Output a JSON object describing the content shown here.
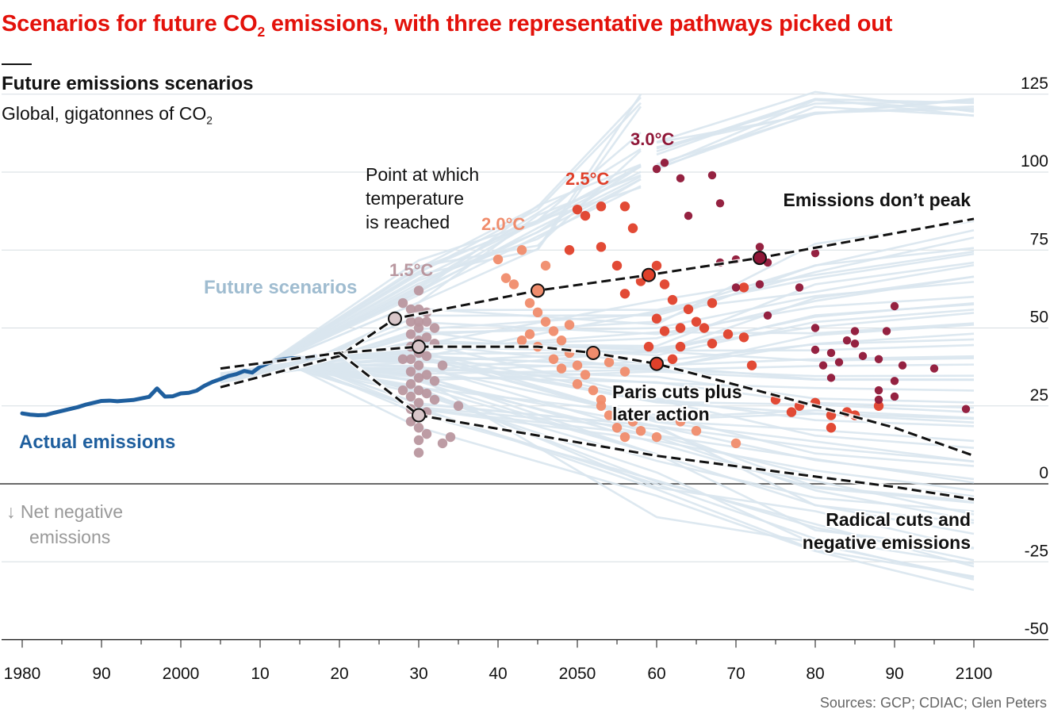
{
  "headline": {
    "text": "Scenarios for future CO",
    "sub": "2",
    "rest": " emissions, with three representative pathways picked out"
  },
  "panel": {
    "title": "Future emissions scenarios",
    "subtitle": "Global, gigatonnes of CO",
    "subtitle_sub": "2"
  },
  "source": "Sources: GCP; CDIAC; Glen Peters",
  "colors": {
    "actual": "#1f5f9e",
    "scenario": "#d9e5ee",
    "deg15": "#b9979f",
    "deg20": "#f08c6c",
    "deg25": "#e0402a",
    "deg30": "#8f1637",
    "pathway": "#111111",
    "headline": "#e3120b"
  },
  "chart_data": {
    "type": "line",
    "xlim": [
      1978,
      2100
    ],
    "ylim": [
      -50,
      125
    ],
    "x_ticks": [
      {
        "value": 1980,
        "label": "1980"
      },
      {
        "value": 1990,
        "label": "90"
      },
      {
        "value": 2000,
        "label": "2000"
      },
      {
        "value": 2010,
        "label": "10"
      },
      {
        "value": 2020,
        "label": "20"
      },
      {
        "value": 2030,
        "label": "30"
      },
      {
        "value": 2040,
        "label": "40"
      },
      {
        "value": 2050,
        "label": "2050"
      },
      {
        "value": 2060,
        "label": "60"
      },
      {
        "value": 2070,
        "label": "70"
      },
      {
        "value": 2080,
        "label": "80"
      },
      {
        "value": 2090,
        "label": "90"
      },
      {
        "value": 2100,
        "label": "2100"
      }
    ],
    "y_ticks": [
      125,
      100,
      75,
      50,
      25,
      0,
      -25,
      -50
    ],
    "grid": true,
    "annotations": {
      "actual": "Actual emissions",
      "future": "Future scenarios",
      "net_negative": [
        "↓ Net negative",
        "emissions"
      ],
      "point_note": [
        "Point at which",
        "temperature",
        "is reached"
      ],
      "no_peak": "Emissions don’t peak",
      "paris": [
        "Paris cuts plus",
        "later action"
      ],
      "radical": [
        "Radical cuts and",
        "negative emissions"
      ],
      "deg15": "1.5°C",
      "deg20": "2.0°C",
      "deg25": "2.5°C",
      "deg30": "3.0°C"
    },
    "actual_emissions": {
      "x": [
        1980,
        1981,
        1982,
        1983,
        1984,
        1985,
        1986,
        1987,
        1988,
        1989,
        1990,
        1991,
        1992,
        1993,
        1994,
        1995,
        1996,
        1997,
        1998,
        1999,
        2000,
        2001,
        2002,
        2003,
        2004,
        2005,
        2006,
        2007,
        2008,
        2009,
        2010,
        2011,
        2012,
        2013,
        2014,
        2015,
        2016,
        2017
      ],
      "y": [
        22.6,
        22.2,
        22.0,
        22.1,
        22.8,
        23.4,
        24.0,
        24.6,
        25.4,
        26.0,
        26.6,
        26.7,
        26.5,
        26.7,
        26.9,
        27.4,
        27.9,
        30.6,
        28.0,
        28.1,
        29.0,
        29.2,
        29.9,
        31.5,
        32.7,
        33.6,
        34.6,
        35.2,
        36.2,
        35.7,
        37.6,
        38.7,
        39.5,
        40.0,
        40.3,
        40.4,
        40.5,
        41.0
      ]
    },
    "pathways": [
      {
        "name": "Emissions don’t peak",
        "x": [
          2005,
          2020,
          2027,
          2045,
          2059,
          2073,
          2100
        ],
        "y": [
          31,
          41,
          53,
          62,
          67,
          72.5,
          85
        ]
      },
      {
        "name": "Paris cuts plus later action",
        "x": [
          2005,
          2020,
          2030,
          2045,
          2052,
          2060,
          2080,
          2090,
          2100
        ],
        "y": [
          37,
          42,
          44,
          44,
          42,
          38.5,
          25,
          18,
          9
        ]
      },
      {
        "name": "Radical cuts and negative emissions",
        "x": [
          2020,
          2030,
          2060,
          2090,
          2100
        ],
        "y": [
          42,
          22,
          9,
          -1,
          -5
        ]
      }
    ],
    "pathway_markers": [
      {
        "x": 2027,
        "y": 53,
        "level": "1.5"
      },
      {
        "x": 2030,
        "y": 44,
        "level": "1.5"
      },
      {
        "x": 2030,
        "y": 22,
        "level": "1.5"
      },
      {
        "x": 2045,
        "y": 62,
        "level": "2.0"
      },
      {
        "x": 2052,
        "y": 42,
        "level": "2.0"
      },
      {
        "x": 2059,
        "y": 67,
        "level": "2.5"
      },
      {
        "x": 2060,
        "y": 38.5,
        "level": "2.5"
      },
      {
        "x": 2073,
        "y": 72.5,
        "level": "3.0"
      }
    ],
    "temperature_points": [
      {
        "level": "1.5",
        "points": [
          [
            2028,
            58
          ],
          [
            2029,
            52
          ],
          [
            2029,
            48
          ],
          [
            2029,
            44
          ],
          [
            2029,
            40
          ],
          [
            2029,
            36
          ],
          [
            2029,
            32
          ],
          [
            2029,
            28
          ],
          [
            2029,
            24
          ],
          [
            2029,
            20
          ],
          [
            2030,
            62
          ],
          [
            2030,
            56
          ],
          [
            2030,
            50
          ],
          [
            2030,
            46
          ],
          [
            2030,
            42
          ],
          [
            2030,
            38
          ],
          [
            2030,
            34
          ],
          [
            2030,
            30
          ],
          [
            2030,
            26
          ],
          [
            2030,
            18
          ],
          [
            2030,
            14
          ],
          [
            2030,
            10
          ],
          [
            2031,
            55
          ],
          [
            2031,
            47
          ],
          [
            2031,
            41
          ],
          [
            2031,
            35
          ],
          [
            2031,
            29
          ],
          [
            2031,
            23
          ],
          [
            2031,
            16
          ],
          [
            2032,
            45
          ],
          [
            2032,
            33
          ],
          [
            2032,
            27
          ],
          [
            2033,
            38
          ],
          [
            2033,
            13
          ],
          [
            2034,
            15
          ],
          [
            2035,
            25
          ],
          [
            2028,
            40
          ],
          [
            2028,
            30
          ],
          [
            2029,
            56
          ],
          [
            2031,
            52
          ],
          [
            2032,
            50
          ],
          [
            2030,
            52
          ]
        ]
      },
      {
        "level": "2.0",
        "points": [
          [
            2040,
            72
          ],
          [
            2041,
            66
          ],
          [
            2042,
            64
          ],
          [
            2044,
            58
          ],
          [
            2045,
            55
          ],
          [
            2046,
            52
          ],
          [
            2047,
            49
          ],
          [
            2048,
            46
          ],
          [
            2049,
            42
          ],
          [
            2050,
            38
          ],
          [
            2051,
            35
          ],
          [
            2052,
            30
          ],
          [
            2053,
            27
          ],
          [
            2054,
            22
          ],
          [
            2055,
            18
          ],
          [
            2056,
            15
          ],
          [
            2043,
            75
          ],
          [
            2046,
            70
          ],
          [
            2044,
            48
          ],
          [
            2045,
            44
          ],
          [
            2047,
            40
          ],
          [
            2048,
            37
          ],
          [
            2050,
            32
          ],
          [
            2053,
            25
          ],
          [
            2057,
            20
          ],
          [
            2058,
            17
          ],
          [
            2060,
            15
          ],
          [
            2063,
            20
          ],
          [
            2065,
            17
          ],
          [
            2070,
            13
          ],
          [
            2043,
            46
          ],
          [
            2049,
            51
          ],
          [
            2054,
            39
          ],
          [
            2056,
            36
          ]
        ]
      },
      {
        "level": "2.5",
        "points": [
          [
            2050,
            88
          ],
          [
            2051,
            86
          ],
          [
            2053,
            89
          ],
          [
            2056,
            89
          ],
          [
            2057,
            82
          ],
          [
            2053,
            76
          ],
          [
            2049,
            75
          ],
          [
            2055,
            70
          ],
          [
            2060,
            70
          ],
          [
            2058,
            65
          ],
          [
            2061,
            64
          ],
          [
            2056,
            61
          ],
          [
            2062,
            59
          ],
          [
            2064,
            56
          ],
          [
            2063,
            50
          ],
          [
            2066,
            50
          ],
          [
            2067,
            45
          ],
          [
            2069,
            48
          ],
          [
            2071,
            47
          ],
          [
            2072,
            38
          ],
          [
            2075,
            27
          ],
          [
            2077,
            23
          ],
          [
            2078,
            25
          ],
          [
            2080,
            26
          ],
          [
            2082,
            22
          ],
          [
            2084,
            23
          ],
          [
            2085,
            22
          ],
          [
            2088,
            25
          ],
          [
            2059,
            44
          ],
          [
            2061,
            49
          ],
          [
            2063,
            44
          ],
          [
            2065,
            52
          ],
          [
            2067,
            58
          ],
          [
            2071,
            63
          ],
          [
            2060,
            53
          ],
          [
            2062,
            40
          ],
          [
            2082,
            18
          ]
        ]
      },
      {
        "level": "3.0",
        "points": [
          [
            2060,
            101
          ],
          [
            2061,
            103
          ],
          [
            2063,
            98
          ],
          [
            2067,
            99
          ],
          [
            2068,
            90
          ],
          [
            2064,
            86
          ],
          [
            2068,
            71
          ],
          [
            2070,
            72
          ],
          [
            2073,
            76
          ],
          [
            2074,
            71
          ],
          [
            2073,
            64
          ],
          [
            2070,
            63
          ],
          [
            2078,
            63
          ],
          [
            2080,
            74
          ],
          [
            2080,
            50
          ],
          [
            2080,
            43
          ],
          [
            2082,
            42
          ],
          [
            2082,
            34
          ],
          [
            2083,
            39
          ],
          [
            2084,
            46
          ],
          [
            2085,
            49
          ],
          [
            2085,
            45
          ],
          [
            2086,
            41
          ],
          [
            2088,
            40
          ],
          [
            2088,
            30
          ],
          [
            2088,
            27
          ],
          [
            2089,
            49
          ],
          [
            2090,
            57
          ],
          [
            2090,
            33
          ],
          [
            2090,
            28
          ],
          [
            2091,
            38
          ],
          [
            2095,
            37
          ],
          [
            2099,
            24
          ],
          [
            2074,
            54
          ],
          [
            2081,
            38
          ]
        ]
      }
    ]
  }
}
